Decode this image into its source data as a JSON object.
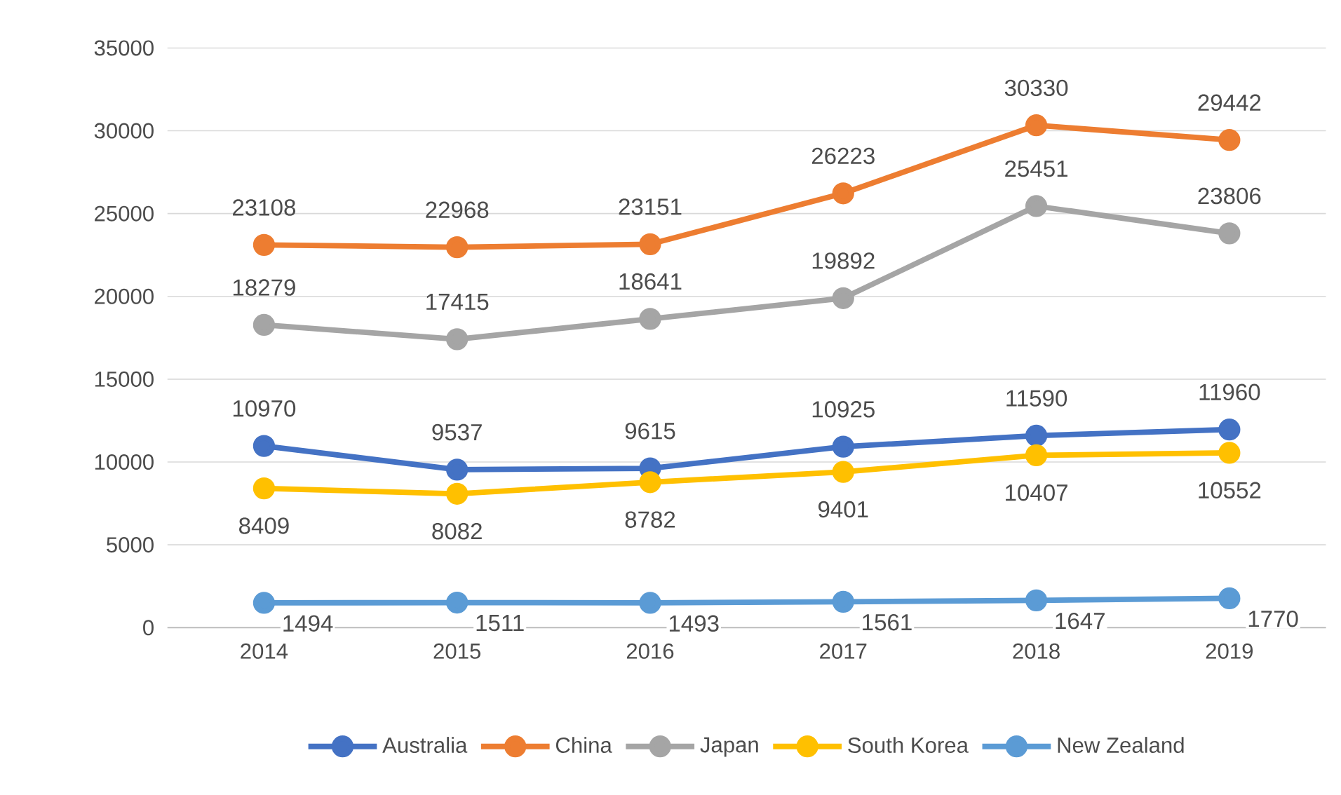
{
  "chart_data": {
    "type": "line",
    "categories": [
      "2014",
      "2015",
      "2016",
      "2017",
      "2018",
      "2019"
    ],
    "series": [
      {
        "name": "Australia",
        "color": "#4472c4",
        "values": [
          10970,
          9537,
          9615,
          10925,
          11590,
          11960
        ]
      },
      {
        "name": "China",
        "color": "#ed7d31",
        "values": [
          23108,
          22968,
          23151,
          26223,
          30330,
          29442
        ]
      },
      {
        "name": "Japan",
        "color": "#a5a5a5",
        "values": [
          18279,
          17415,
          18641,
          19892,
          25451,
          23806
        ]
      },
      {
        "name": "South Korea",
        "color": "#ffc000",
        "values": [
          8409,
          8082,
          8782,
          9401,
          10407,
          10552
        ]
      },
      {
        "name": "New Zealand",
        "color": "#5b9bd5",
        "values": [
          1494,
          1511,
          1493,
          1561,
          1647,
          1770
        ]
      }
    ],
    "ylim": [
      0,
      35000
    ],
    "yticks": [
      0,
      5000,
      10000,
      15000,
      20000,
      25000,
      30000,
      35000
    ],
    "grid": "y",
    "legend": "bottom",
    "marker": "circle",
    "line_style": "solid",
    "data_labels": true
  }
}
